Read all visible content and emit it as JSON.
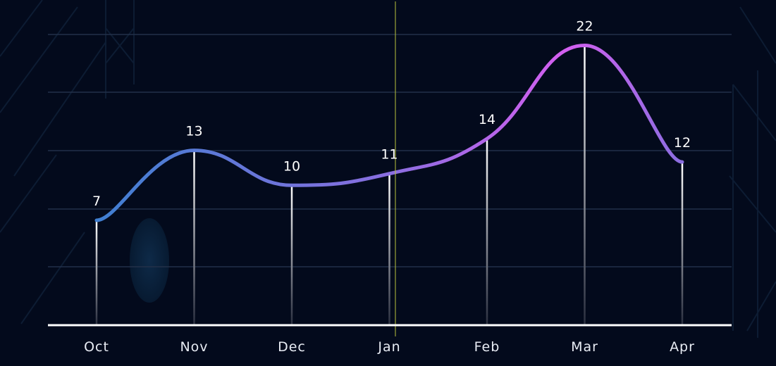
{
  "chart_data": {
    "type": "line",
    "categories": [
      "Oct",
      "Nov",
      "Dec",
      "Jan",
      "Feb",
      "Mar",
      "Apr"
    ],
    "values": [
      7,
      13,
      10,
      11,
      14,
      22,
      12
    ],
    "ylim": [
      -2,
      23
    ],
    "grid": true,
    "colors": {
      "line_start": "#3f7fd1",
      "line_mid": "#8a6ee0",
      "line_end": "#d45ff0",
      "drop_line_top": "#ffffff",
      "drop_line_bottom": "#2a2f3f",
      "grid": "#233049",
      "axis": "#ffffff",
      "crosshair": "#b8c23c"
    }
  }
}
